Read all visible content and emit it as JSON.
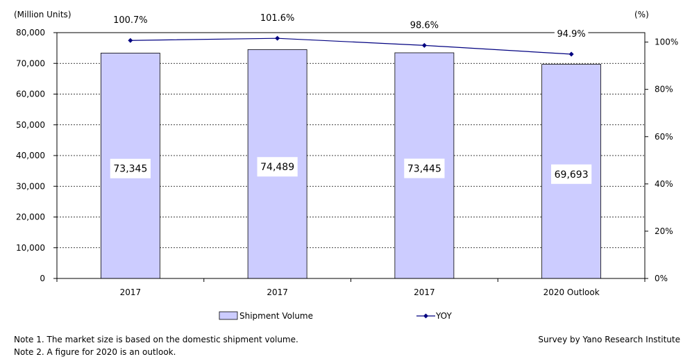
{
  "chart_data": {
    "type": "bar",
    "categories": [
      "2017",
      "2017",
      "2017",
      "2020 Outlook"
    ],
    "series": [
      {
        "name": "Shipment Volume",
        "type": "bar",
        "axis": "left",
        "values": [
          73345,
          74489,
          73445,
          69693
        ],
        "labels": [
          "73,345",
          "74,489",
          "73,445",
          "69,693"
        ],
        "color": "#ccccff"
      },
      {
        "name": "YOY",
        "type": "line",
        "axis": "right",
        "values": [
          100.7,
          101.6,
          98.6,
          94.9
        ],
        "labels": [
          "100.7%",
          "101.6%",
          "98.6%",
          "94.9%"
        ],
        "color": "#000080"
      }
    ],
    "y_left": {
      "unit_label": "(Million  Units)",
      "ylim": [
        0,
        80000
      ],
      "ticks": [
        "0",
        "10,000",
        "20,000",
        "30,000",
        "40,000",
        "50,000",
        "60,000",
        "70,000",
        "80,000"
      ]
    },
    "y_right": {
      "unit_label": "(%)",
      "ylim": [
        0,
        104
      ],
      "tick_values": [
        0,
        20,
        40,
        60,
        80,
        100
      ],
      "ticks": [
        "0%",
        "20%",
        "40%",
        "60%",
        "80%",
        "100%"
      ]
    },
    "grid": true,
    "legend_position": "bottom"
  },
  "notes": [
    "Note 1.  The market size is based on the domestic shipment volume.",
    "Note 2.  A figure for 2020 is an outlook."
  ],
  "source": "Survey by Yano Research Institute"
}
